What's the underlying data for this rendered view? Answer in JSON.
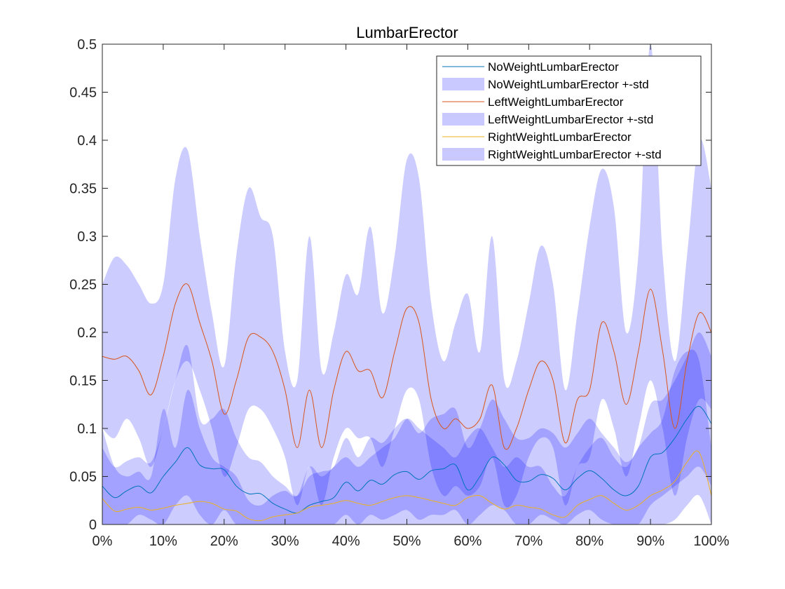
{
  "chart_data": {
    "type": "area",
    "title": "LumbarErector",
    "xlabel": "",
    "ylabel": "",
    "xlim": [
      0,
      100
    ],
    "ylim": [
      0,
      0.5
    ],
    "xtick_labels": [
      "0%",
      "10%",
      "20%",
      "30%",
      "40%",
      "50%",
      "60%",
      "70%",
      "80%",
      "90%",
      "100%"
    ],
    "xtick_values": [
      0,
      10,
      20,
      30,
      40,
      50,
      60,
      70,
      80,
      90,
      100
    ],
    "ytick_labels": [
      "0",
      "0.05",
      "0.1",
      "0.15",
      "0.2",
      "0.25",
      "0.3",
      "0.35",
      "0.4",
      "0.45",
      "0.5"
    ],
    "ytick_values": [
      0,
      0.05,
      0.1,
      0.15,
      0.2,
      0.25,
      0.3,
      0.35,
      0.4,
      0.45,
      0.5
    ],
    "grid": false,
    "legend_position": "top-right",
    "x": [
      0,
      2,
      4,
      6,
      8,
      10,
      12,
      14,
      16,
      18,
      20,
      22,
      24,
      26,
      28,
      30,
      32,
      34,
      36,
      38,
      40,
      42,
      44,
      46,
      48,
      50,
      52,
      54,
      56,
      58,
      60,
      62,
      64,
      66,
      68,
      70,
      72,
      74,
      76,
      78,
      80,
      82,
      84,
      86,
      88,
      90,
      92,
      94,
      96,
      98,
      100
    ],
    "series": [
      {
        "name": "NoWeightLumbarErector",
        "color": "#0072BD",
        "values": [
          0.04,
          0.028,
          0.035,
          0.04,
          0.033,
          0.05,
          0.065,
          0.08,
          0.062,
          0.058,
          0.057,
          0.04,
          0.032,
          0.032,
          0.022,
          0.016,
          0.012,
          0.02,
          0.024,
          0.028,
          0.044,
          0.035,
          0.046,
          0.042,
          0.052,
          0.055,
          0.047,
          0.056,
          0.058,
          0.062,
          0.036,
          0.05,
          0.07,
          0.062,
          0.046,
          0.045,
          0.052,
          0.048,
          0.036,
          0.048,
          0.056,
          0.048,
          0.036,
          0.03,
          0.04,
          0.07,
          0.075,
          0.09,
          0.11,
          0.123,
          0.105
        ],
        "band_low": [
          0.0,
          0.0,
          0.0,
          0.01,
          0.005,
          0.0,
          0.02,
          0.03,
          0.01,
          0.0,
          0.015,
          0.0,
          0.0,
          0.0,
          0.0,
          0.0,
          0.0,
          0.0,
          0.0,
          0.0,
          0.01,
          0.0,
          0.01,
          0.005,
          0.01,
          0.015,
          0.005,
          0.01,
          0.01,
          0.015,
          0.0,
          0.01,
          0.02,
          0.015,
          0.0,
          0.0,
          0.01,
          0.005,
          0.0,
          0.01,
          0.015,
          0.005,
          0.0,
          0.0,
          0.0,
          0.02,
          0.03,
          0.04,
          0.05,
          0.06,
          0.04
        ],
        "band_high": [
          0.08,
          0.06,
          0.066,
          0.07,
          0.065,
          0.1,
          0.15,
          0.186,
          0.11,
          0.11,
          0.12,
          0.09,
          0.07,
          0.065,
          0.05,
          0.04,
          0.03,
          0.05,
          0.055,
          0.06,
          0.09,
          0.07,
          0.09,
          0.085,
          0.1,
          0.11,
          0.095,
          0.11,
          0.115,
          0.12,
          0.08,
          0.1,
          0.13,
          0.11,
          0.09,
          0.09,
          0.1,
          0.095,
          0.08,
          0.095,
          0.11,
          0.095,
          0.08,
          0.065,
          0.08,
          0.125,
          0.13,
          0.15,
          0.175,
          0.2,
          0.175
        ]
      },
      {
        "name": "LeftWeightLumbarErector",
        "color": "#D95319",
        "values": [
          0.175,
          0.172,
          0.175,
          0.16,
          0.135,
          0.175,
          0.23,
          0.25,
          0.21,
          0.17,
          0.115,
          0.15,
          0.195,
          0.195,
          0.18,
          0.14,
          0.08,
          0.14,
          0.08,
          0.14,
          0.18,
          0.16,
          0.16,
          0.132,
          0.18,
          0.225,
          0.21,
          0.13,
          0.1,
          0.11,
          0.1,
          0.11,
          0.145,
          0.08,
          0.1,
          0.14,
          0.17,
          0.15,
          0.085,
          0.13,
          0.14,
          0.21,
          0.18,
          0.125,
          0.18,
          0.245,
          0.18,
          0.1,
          0.17,
          0.22,
          0.2
        ],
        "band_low": [
          0.1,
          0.09,
          0.11,
          0.09,
          0.06,
          0.1,
          0.15,
          0.17,
          0.14,
          0.1,
          0.05,
          0.08,
          0.12,
          0.12,
          0.1,
          0.07,
          0.02,
          0.06,
          0.02,
          0.07,
          0.1,
          0.09,
          0.09,
          0.06,
          0.1,
          0.14,
          0.13,
          0.06,
          0.03,
          0.04,
          0.03,
          0.04,
          0.07,
          0.02,
          0.03,
          0.07,
          0.09,
          0.08,
          0.02,
          0.06,
          0.07,
          0.13,
          0.1,
          0.05,
          0.1,
          0.15,
          0.1,
          0.03,
          0.09,
          0.13,
          0.12
        ],
        "band_high": [
          0.25,
          0.278,
          0.27,
          0.25,
          0.23,
          0.25,
          0.36,
          0.39,
          0.3,
          0.22,
          0.165,
          0.28,
          0.35,
          0.32,
          0.3,
          0.18,
          0.15,
          0.3,
          0.16,
          0.2,
          0.26,
          0.24,
          0.31,
          0.22,
          0.28,
          0.38,
          0.36,
          0.23,
          0.17,
          0.21,
          0.24,
          0.18,
          0.3,
          0.15,
          0.17,
          0.23,
          0.29,
          0.25,
          0.14,
          0.22,
          0.31,
          0.37,
          0.33,
          0.2,
          0.28,
          0.5,
          0.28,
          0.17,
          0.28,
          0.4,
          0.35
        ]
      },
      {
        "name": "RightWeightLumbarErector",
        "color": "#EDB120",
        "values": [
          0.027,
          0.014,
          0.016,
          0.018,
          0.015,
          0.017,
          0.02,
          0.022,
          0.024,
          0.022,
          0.016,
          0.014,
          0.006,
          0.004,
          0.008,
          0.01,
          0.012,
          0.018,
          0.02,
          0.022,
          0.025,
          0.022,
          0.02,
          0.024,
          0.028,
          0.03,
          0.028,
          0.025,
          0.022,
          0.02,
          0.028,
          0.03,
          0.022,
          0.016,
          0.02,
          0.018,
          0.016,
          0.01,
          0.008,
          0.02,
          0.026,
          0.03,
          0.022,
          0.015,
          0.02,
          0.03,
          0.036,
          0.045,
          0.065,
          0.075,
          0.03
        ],
        "band_low": [
          0.0,
          0.0,
          0.0,
          0.0,
          0.0,
          0.0,
          0.0,
          0.0,
          0.0,
          0.0,
          0.0,
          0.0,
          0.0,
          0.0,
          0.0,
          0.0,
          0.0,
          0.0,
          0.0,
          0.0,
          0.0,
          0.0,
          0.0,
          0.0,
          0.0,
          0.0,
          0.0,
          0.0,
          0.0,
          0.0,
          0.0,
          0.0,
          0.0,
          0.0,
          0.0,
          0.0,
          0.0,
          0.0,
          0.0,
          0.0,
          0.0,
          0.0,
          0.0,
          0.0,
          0.0,
          0.0,
          0.0,
          0.005,
          0.02,
          0.03,
          0.0
        ],
        "band_high": [
          0.1,
          0.06,
          0.05,
          0.055,
          0.05,
          0.12,
          0.08,
          0.14,
          0.1,
          0.07,
          0.06,
          0.05,
          0.025,
          0.02,
          0.03,
          0.035,
          0.03,
          0.06,
          0.05,
          0.06,
          0.07,
          0.06,
          0.07,
          0.08,
          0.09,
          0.11,
          0.1,
          0.09,
          0.08,
          0.07,
          0.09,
          0.1,
          0.08,
          0.06,
          0.07,
          0.06,
          0.06,
          0.04,
          0.03,
          0.06,
          0.08,
          0.09,
          0.07,
          0.06,
          0.08,
          0.095,
          0.11,
          0.16,
          0.18,
          0.17,
          0.08
        ]
      }
    ],
    "legend": [
      {
        "label": "NoWeightLumbarErector",
        "kind": "line",
        "color": "#0072BD"
      },
      {
        "label": "NoWeightLumbarErector +-std",
        "kind": "patch",
        "color": "#C9C9FF"
      },
      {
        "label": "LeftWeightLumbarErector",
        "kind": "line",
        "color": "#D95319"
      },
      {
        "label": "LeftWeightLumbarErector +-std",
        "kind": "patch",
        "color": "#C9C9FF"
      },
      {
        "label": "RightWeightLumbarErector",
        "kind": "line",
        "color": "#EDB120"
      },
      {
        "label": "RightWeightLumbarErector +-std",
        "kind": "patch",
        "color": "#C9C9FF"
      }
    ],
    "band_color": "#0000FF",
    "band_opacity": 0.2
  }
}
